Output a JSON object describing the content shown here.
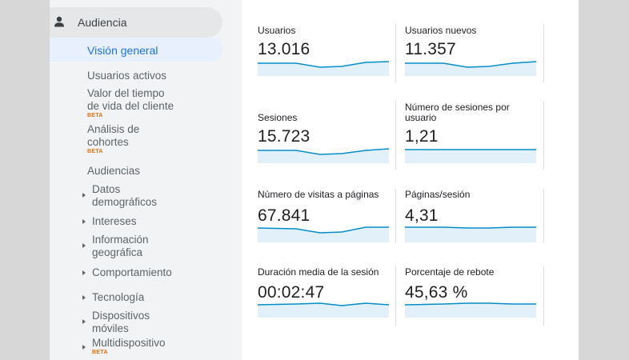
{
  "sidebar": {
    "section": {
      "label": "Audiencia",
      "icon": "person-icon"
    },
    "selected": "Visión general",
    "items": [
      {
        "label": "Usuarios activos"
      },
      {
        "label_line1": "Valor del tiempo",
        "label_line2": "de vida del cliente",
        "badge": "BETA"
      },
      {
        "label_line1": "Análisis de",
        "label_line2": "cohortes",
        "badge": "BETA"
      },
      {
        "label": "Audiencias"
      },
      {
        "label_line1": "Datos",
        "label_line2": "demográficos",
        "expandable": true
      },
      {
        "label": "Intereses",
        "expandable": true
      },
      {
        "label_line1": "Información",
        "label_line2": "geográfica",
        "expandable": true
      },
      {
        "label": "Comportamiento",
        "expandable": true
      },
      {
        "label": "Tecnología",
        "expandable": true
      },
      {
        "label_line1": "Dispositivos",
        "label_line2": "móviles",
        "expandable": true
      },
      {
        "label": "Multidispositivo",
        "badge": "BETA",
        "expandable": true
      }
    ]
  },
  "metrics": [
    {
      "label": "Usuarios",
      "value": "13.016"
    },
    {
      "label": "Usuarios nuevos",
      "value": "11.357"
    },
    {
      "label": "Sesiones",
      "value": "15.723"
    },
    {
      "label": "Número de sesiones por usuario",
      "value": "1,21"
    },
    {
      "label": "Número de visitas a páginas",
      "value": "67.841"
    },
    {
      "label": "Páginas/sesión",
      "value": "4,31"
    },
    {
      "label": "Duración media de la sesión",
      "value": "00:02:47"
    },
    {
      "label": "Porcentaje de rebote",
      "value": "45,63 %"
    }
  ],
  "colors": {
    "accent": "#1a73e8",
    "selected_bg": "#e8f0fe",
    "sparkline": "#058dc7",
    "sparkline_fill": "#e1f0f9",
    "beta": "#e8710a"
  }
}
